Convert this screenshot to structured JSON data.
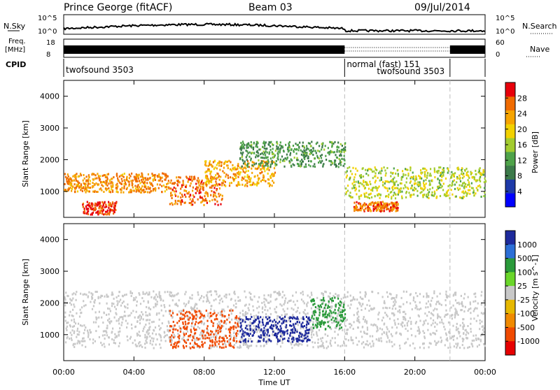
{
  "header": {
    "station": "Prince George (fitACF)",
    "beam": "Beam 03",
    "date": "09/Jul/2014"
  },
  "strip": {
    "nsky_label": "N.Sky",
    "nsearch_label": "N.Search",
    "nsky_ticks": [
      "10^5",
      "10^0"
    ],
    "nsearch_ticks": [
      "10^5",
      "10^0"
    ],
    "freq_label_1": "Freq.",
    "freq_label_2": "[MHz]",
    "freq_ticks": [
      "18",
      "8"
    ],
    "nave_label": "Nave",
    "nave_ticks": [
      "60",
      "0"
    ],
    "cpid_label": "CPID"
  },
  "cpid_segments": [
    {
      "name": "twofsound 3503",
      "start_h": 0,
      "end_h": 16
    },
    {
      "name": "normal (fast) 151",
      "start_h": 16,
      "end_h": 22
    },
    {
      "name": "twofsound 3503",
      "start_h": 16,
      "end_h": 22
    }
  ],
  "colors": {
    "power_scale": [
      "#0000ff",
      "#1e3aa8",
      "#3c7a4a",
      "#4fa34a",
      "#a3cc2f",
      "#f2d100",
      "#f6a400",
      "#f06b00",
      "#e8000b"
    ],
    "velocity_scale": [
      "#1e2a9c",
      "#2c6fd6",
      "#2a9a3a",
      "#6ad62a",
      "#c8c8c8",
      "#e6b800",
      "#f08a00",
      "#f04a00",
      "#e60000"
    ]
  },
  "chart_data": [
    {
      "type": "heatmap",
      "title": "",
      "xlabel": "",
      "ylabel": "Slant Range [km]",
      "xlim_hours": [
        0,
        24
      ],
      "ylim_km": [
        180,
        4500
      ],
      "y_ticks": [
        1000,
        2000,
        3000,
        4000
      ],
      "colorbar": {
        "label": "Power [dB]",
        "ticks": [
          "4",
          "8",
          "12",
          "16",
          "20",
          "24",
          "28"
        ],
        "range": [
          0,
          30
        ]
      },
      "features": [
        {
          "start_h": 0.0,
          "end_h": 6.0,
          "range_km": [
            1000,
            1600
          ],
          "value": 24
        },
        {
          "start_h": 1.0,
          "end_h": 3.0,
          "range_km": [
            300,
            700
          ],
          "value": 28
        },
        {
          "start_h": 6.0,
          "end_h": 9.0,
          "range_km": [
            600,
            1500
          ],
          "value": 26
        },
        {
          "start_h": 8.0,
          "end_h": 12.0,
          "range_km": [
            1200,
            2000
          ],
          "value": 22
        },
        {
          "start_h": 10.0,
          "end_h": 16.0,
          "range_km": [
            1800,
            2600
          ],
          "value": 10
        },
        {
          "start_h": 16.0,
          "end_h": 24.0,
          "range_km": [
            800,
            1800
          ],
          "value": 16
        },
        {
          "start_h": 16.5,
          "end_h": 19.0,
          "range_km": [
            400,
            700
          ],
          "value": 26
        }
      ]
    },
    {
      "type": "heatmap",
      "title": "",
      "xlabel": "Time UT",
      "ylabel": "Slant Range [km]",
      "xlim_hours": [
        0,
        24
      ],
      "ylim_km": [
        180,
        4500
      ],
      "y_ticks": [
        1000,
        2000,
        3000,
        4000
      ],
      "x_ticks": [
        "00:00",
        "04:00",
        "08:00",
        "12:00",
        "16:00",
        "20:00",
        "00:00"
      ],
      "colorbar": {
        "label": "Velocity [m s^-1]",
        "ticks": [
          "1000",
          "500",
          "100",
          "25",
          "-25",
          "-100",
          "-500",
          "-1000"
        ]
      },
      "features": [
        {
          "start_h": 0.0,
          "end_h": 24.0,
          "range_km": [
            600,
            2400
          ],
          "value": 0
        },
        {
          "start_h": 6.0,
          "end_h": 10.0,
          "range_km": [
            600,
            1800
          ],
          "value": -400
        },
        {
          "start_h": 10.0,
          "end_h": 14.0,
          "range_km": [
            800,
            1600
          ],
          "value": 600
        },
        {
          "start_h": 14.0,
          "end_h": 16.0,
          "range_km": [
            1200,
            2200
          ],
          "value": 150
        }
      ]
    }
  ],
  "time_axis": {
    "label": "Time UT",
    "ticks": [
      "00:00",
      "04:00",
      "08:00",
      "12:00",
      "16:00",
      "20:00",
      "00:00"
    ]
  }
}
